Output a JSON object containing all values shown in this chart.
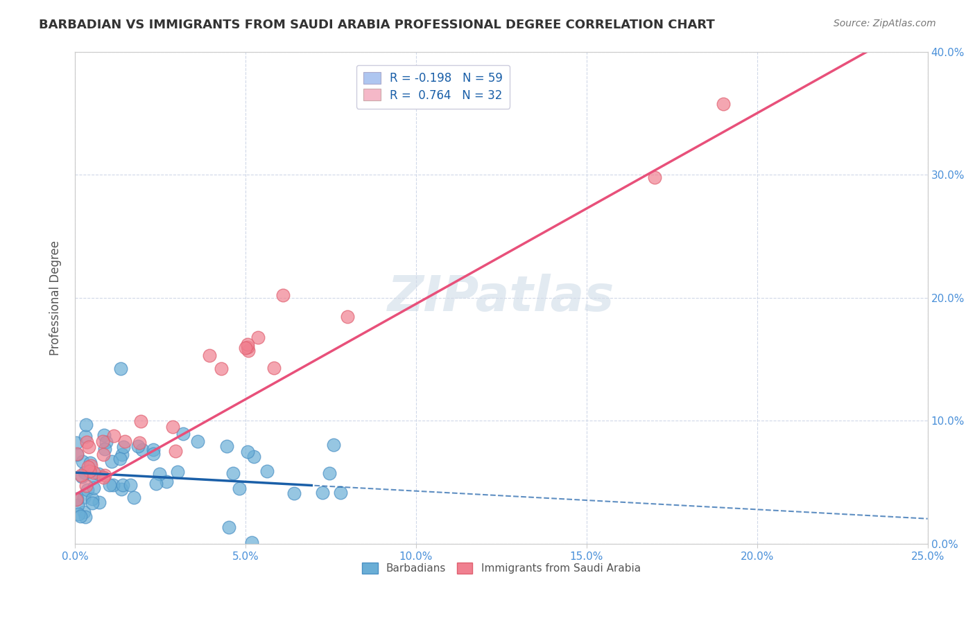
{
  "title": "BARBADIAN VS IMMIGRANTS FROM SAUDI ARABIA PROFESSIONAL DEGREE CORRELATION CHART",
  "source_text": "Source: ZipAtlas.com",
  "ylabel": "Professional Degree",
  "xlim": [
    0.0,
    0.25
  ],
  "ylim": [
    0.0,
    0.4
  ],
  "xticks": [
    0.0,
    0.05,
    0.1,
    0.15,
    0.2,
    0.25
  ],
  "yticks_right": [
    0.0,
    0.1,
    0.2,
    0.3,
    0.4
  ],
  "watermark": "ZIPatlas",
  "legend_items": [
    {
      "label": "R = -0.198   N = 59",
      "color": "#aec6f0"
    },
    {
      "label": "R =  0.764   N = 32",
      "color": "#f5b8c8"
    }
  ],
  "barbadians": {
    "color": "#6aaed6",
    "edge_color": "#4a90c4",
    "R": -0.198,
    "N": 59,
    "line_color": "#1a5fa8"
  },
  "saudi": {
    "color": "#f08090",
    "edge_color": "#e06070",
    "R": 0.764,
    "N": 32,
    "line_color": "#e8507a"
  },
  "background_color": "#ffffff",
  "plot_bg_color": "#ffffff",
  "grid_color": "#d0d8e8",
  "title_color": "#333333",
  "axis_label_color": "#555555",
  "tick_label_color": "#4a90d9",
  "watermark_color": "#d0dce8"
}
